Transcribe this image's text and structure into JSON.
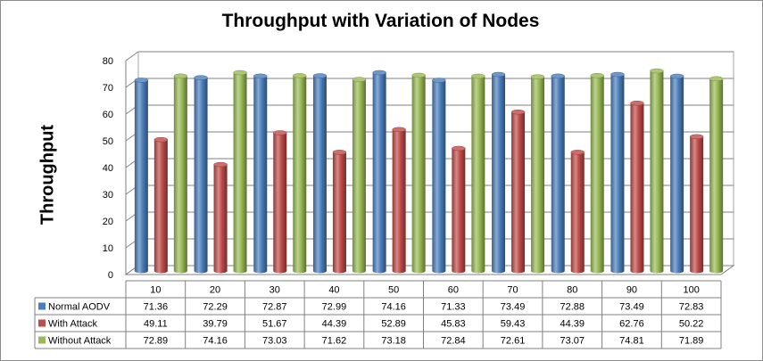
{
  "chart_data": {
    "type": "bar",
    "title": "Throughput with Variation of Nodes",
    "xlabel": "",
    "ylabel": "Throughput",
    "ylim": [
      0,
      80
    ],
    "yticks": [
      0,
      10,
      20,
      30,
      40,
      50,
      60,
      70,
      80
    ],
    "grid": true,
    "legend": "data-table-left",
    "categories": [
      "10",
      "20",
      "30",
      "40",
      "50",
      "60",
      "70",
      "80",
      "90",
      "100"
    ],
    "series": [
      {
        "name": "Normal AODV",
        "color": "#4a7ebb",
        "values": [
          71.36,
          72.29,
          72.87,
          72.99,
          74.16,
          71.33,
          73.49,
          72.88,
          73.49,
          72.83
        ]
      },
      {
        "name": "With Attack",
        "color": "#be4b48",
        "values": [
          49.11,
          39.79,
          51.67,
          44.39,
          52.89,
          45.83,
          59.43,
          44.39,
          62.76,
          50.22
        ]
      },
      {
        "name": "Without Attack",
        "color": "#98b954",
        "values": [
          72.89,
          74.16,
          73.03,
          71.62,
          73.18,
          72.84,
          72.61,
          73.07,
          74.81,
          71.89
        ]
      }
    ]
  }
}
